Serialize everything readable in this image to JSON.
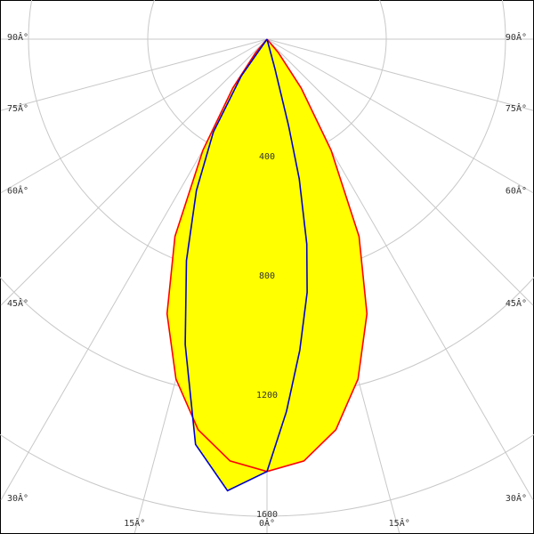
{
  "chart_data": {
    "type": "polar",
    "rlim": [
      0,
      1600
    ],
    "rticks": [
      400,
      800,
      1200,
      1600
    ],
    "thetaticks": [
      {
        "value": -90,
        "label": "90Â°"
      },
      {
        "value": -75,
        "label": "75Â°"
      },
      {
        "value": -60,
        "label": "60Â°"
      },
      {
        "value": -45,
        "label": "45Â°"
      },
      {
        "value": -30,
        "label": "30Â°"
      },
      {
        "value": -15,
        "label": "15Â°"
      },
      {
        "value": 0,
        "label": "0Â°"
      },
      {
        "value": 15,
        "label": "15Â°"
      },
      {
        "value": 30,
        "label": "30Â°"
      },
      {
        "value": 45,
        "label": "45Â°"
      },
      {
        "value": 60,
        "label": "60Â°"
      },
      {
        "value": 75,
        "label": "75Â°"
      },
      {
        "value": 90,
        "label": "90Â°"
      }
    ],
    "fill": "#ffff00",
    "grid": true,
    "series": [
      {
        "color": "#ff0000",
        "x": [
          -40,
          -35,
          -30,
          -25,
          -20,
          -15,
          -10,
          -5,
          0,
          5,
          10,
          15,
          20,
          25,
          30,
          35,
          40
        ],
        "values": [
          60,
          200,
          430,
          730,
          980,
          1180,
          1330,
          1420,
          1450,
          1420,
          1330,
          1180,
          980,
          730,
          430,
          200,
          60
        ]
      },
      {
        "color": "#0000cc",
        "x": [
          -35,
          -30,
          -25,
          -20,
          -15,
          -10,
          -5,
          0,
          3,
          6,
          9,
          11,
          13,
          14,
          15
        ],
        "values": [
          150,
          360,
          560,
          790,
          1060,
          1380,
          1520,
          1450,
          1250,
          1050,
          860,
          700,
          480,
          300,
          100
        ]
      }
    ]
  }
}
